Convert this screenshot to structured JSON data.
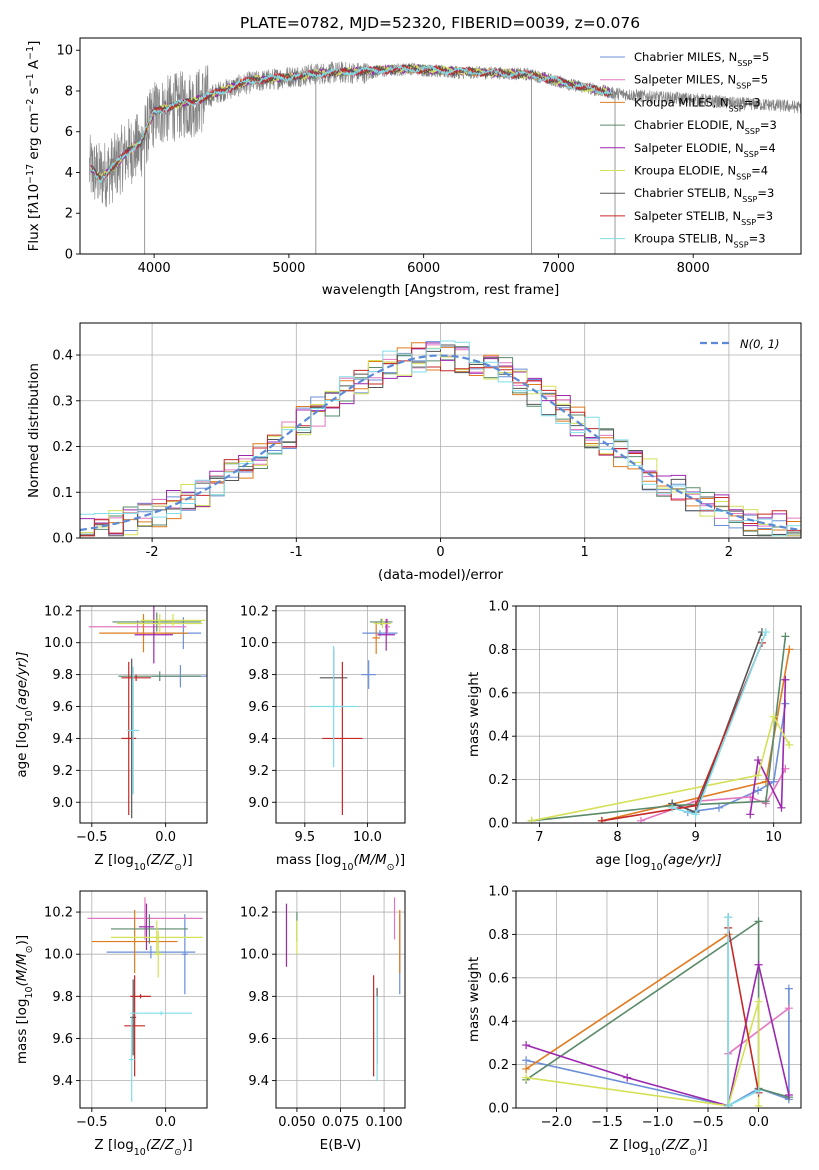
{
  "figure": {
    "title": "PLATE=0782, MJD=52320, FIBERID=0039, z=0.076"
  },
  "models": [
    {
      "name": "Chabrier MILES, N_SSP=5",
      "imf": "Chabrier",
      "lib": "MILES",
      "nssp": "5",
      "color": "#6b8fd8"
    },
    {
      "name": "Salpeter MILES, N_SSP=5",
      "imf": "Salpeter",
      "lib": "MILES",
      "nssp": "5",
      "color": "#e377c2"
    },
    {
      "name": "Kroupa MILES, N_SSP=3",
      "imf": "Kroupa",
      "lib": "MILES",
      "nssp": "3",
      "color": "#e07b1f"
    },
    {
      "name": "Chabrier ELODIE, N_SSP=3",
      "imf": "Chabrier",
      "lib": "ELODIE",
      "nssp": "3",
      "color": "#5a8a6a"
    },
    {
      "name": "Salpeter ELODIE, N_SSP=4",
      "imf": "Salpeter",
      "lib": "ELODIE",
      "nssp": "4",
      "color": "#9c27b0"
    },
    {
      "name": "Kroupa ELODIE, N_SSP=4",
      "imf": "Kroupa",
      "lib": "ELODIE",
      "nssp": "4",
      "color": "#d4e157"
    },
    {
      "name": "Chabrier STELIB, N_SSP=3",
      "imf": "Chabrier",
      "lib": "STELIB",
      "nssp": "3",
      "color": "#555555"
    },
    {
      "name": "Salpeter STELIB, N_SSP=3",
      "imf": "Salpeter",
      "lib": "STELIB",
      "nssp": "3",
      "color": "#c62828"
    },
    {
      "name": "Kroupa STELIB, N_SSP=3",
      "imf": "Kroupa",
      "lib": "STELIB",
      "nssp": "3",
      "color": "#80deea"
    }
  ],
  "chart_data": [
    {
      "type": "line",
      "panel": "spectrum",
      "xlabel": "wavelength [Angstrom, rest frame]",
      "ylabel_parts": [
        "Flux [f",
        "λ",
        "10",
        "−17",
        " erg cm",
        "−2",
        " s",
        "−1",
        " A",
        "−1",
        "]"
      ],
      "xlim": [
        3450,
        8800
      ],
      "ylim": [
        0,
        10.6
      ],
      "xticks": [
        4000,
        5000,
        6000,
        7000,
        8000
      ],
      "yticks": [
        0,
        2,
        4,
        6,
        8,
        10
      ],
      "data_color": "#808080",
      "data_profile": {
        "x": [
          3520,
          3600,
          3700,
          3800,
          3900,
          4000,
          4100,
          4200,
          4300,
          4500,
          4700,
          5000,
          5300,
          5600,
          5900,
          6200,
          6500,
          6800,
          7100,
          7400,
          7700,
          8000,
          8300,
          8600,
          8800
        ],
        "y": [
          4.2,
          3.8,
          4.2,
          5.0,
          5.3,
          6.9,
          7.1,
          7.3,
          7.4,
          8.0,
          8.4,
          8.7,
          8.9,
          8.9,
          9.1,
          8.9,
          8.9,
          8.8,
          8.3,
          7.9,
          7.7,
          7.6,
          7.4,
          7.3,
          7.2
        ]
      },
      "data_dropouts": [
        3930,
        5200,
        6800,
        7420
      ],
      "model_profile": {
        "x": [
          3520,
          3600,
          3700,
          3800,
          3900,
          4000,
          4100,
          4200,
          4300,
          4500,
          4700,
          5000,
          5300,
          5600,
          5900,
          6200,
          6500,
          6800,
          7100,
          7400
        ],
        "y": [
          4.3,
          3.7,
          4.3,
          5.0,
          5.5,
          7.0,
          7.2,
          7.4,
          7.5,
          8.0,
          8.5,
          8.7,
          8.9,
          9.0,
          9.1,
          9.0,
          8.9,
          8.8,
          8.3,
          7.9
        ]
      }
    },
    {
      "type": "line",
      "panel": "residuals",
      "xlabel": "(data-model)/error",
      "ylabel": "Normed distribution",
      "legend": "N(0, 1)",
      "legend_position": "top-right",
      "xlim": [
        -2.5,
        2.5
      ],
      "ylim": [
        0,
        0.47
      ],
      "xticks": [
        -2,
        -1,
        0,
        1,
        2
      ],
      "yticks": [
        0.0,
        0.1,
        0.2,
        0.3,
        0.4
      ],
      "bin_width": 0.1
    },
    {
      "type": "scatter",
      "panel": "age_vs_Z",
      "xlabel_parts": [
        "Z [log",
        "10",
        "(Z/Z",
        "⊙",
        ")]"
      ],
      "ylabel_parts": [
        "age  [log",
        "10",
        "(age/yr)]"
      ],
      "xlim": [
        -0.58,
        0.28
      ],
      "ylim": [
        8.87,
        10.23
      ],
      "xticks": [
        -0.5,
        0.0
      ],
      "xticklabels": [
        "−0.5",
        "0.0"
      ],
      "yticks": [
        9.0,
        9.2,
        9.4,
        9.6,
        9.8,
        10.0,
        10.2
      ],
      "points": [
        {
          "model": 0,
          "x": 0.1,
          "xerr": 0.19,
          "y": 9.79,
          "yerr": 0.07
        },
        {
          "model": 0,
          "x": 0.12,
          "xerr": 0.12,
          "y": 10.06,
          "yerr": 0.1
        },
        {
          "model": 1,
          "x": -0.19,
          "xerr": 0.33,
          "y": 10.1,
          "yerr": 0.04
        },
        {
          "model": 2,
          "x": -0.15,
          "xerr": 0.3,
          "y": 10.06,
          "yerr": 0.12
        },
        {
          "model": 3,
          "x": -0.06,
          "xerr": 0.3,
          "y": 10.13,
          "yerr": 0.06
        },
        {
          "model": 3,
          "x": -0.04,
          "xerr": 0.28,
          "y": 9.79,
          "yerr": 0.03
        },
        {
          "model": 4,
          "x": -0.08,
          "xerr": 0.13,
          "y": 10.05,
          "yerr": 0.18
        },
        {
          "model": 5,
          "x": -0.04,
          "xerr": 0.29,
          "y": 10.12,
          "yerr": 0.06
        },
        {
          "model": 5,
          "x": 0.05,
          "xerr": 0.22,
          "y": 10.14,
          "yerr": 0.04
        },
        {
          "model": 6,
          "x": -0.23,
          "xerr": 0.03,
          "y": 9.4,
          "yerr": 0.5
        },
        {
          "model": 7,
          "x": -0.25,
          "xerr": 0.05,
          "y": 9.4,
          "yerr": 0.48
        },
        {
          "model": 7,
          "x": -0.2,
          "xerr": 0.1,
          "y": 9.78,
          "yerr": 0.02
        },
        {
          "model": 8,
          "x": -0.22,
          "xerr": 0.04,
          "y": 9.45,
          "yerr": 0.4
        }
      ]
    },
    {
      "type": "scatter",
      "panel": "age_vs_mass",
      "xlabel_parts": [
        "mass [log",
        "10",
        "(M/M",
        "⊙",
        ")]"
      ],
      "xlim": [
        9.27,
        10.3
      ],
      "ylim": [
        8.87,
        10.23
      ],
      "xticks": [
        9.5,
        10.0
      ],
      "xticklabels": [
        "9.5",
        "10.0"
      ],
      "yticks": [
        9.0,
        9.2,
        9.4,
        9.6,
        9.8,
        10.0,
        10.2
      ],
      "points": [
        {
          "model": 0,
          "x": 10.01,
          "xerr": 0.06,
          "y": 9.8,
          "yerr": 0.09
        },
        {
          "model": 0,
          "x": 10.1,
          "xerr": 0.14,
          "y": 10.06,
          "yerr": 0.02
        },
        {
          "model": 1,
          "x": 10.16,
          "xerr": 0.02,
          "y": 10.1,
          "yerr": 0.05
        },
        {
          "model": 2,
          "x": 10.07,
          "xerr": 0.03,
          "y": 10.03,
          "yerr": 0.1
        },
        {
          "model": 3,
          "x": 10.11,
          "xerr": 0.09,
          "y": 10.13,
          "yerr": 0.02
        },
        {
          "model": 4,
          "x": 10.15,
          "xerr": 0.07,
          "y": 10.05,
          "yerr": 0.1
        },
        {
          "model": 5,
          "x": 10.12,
          "xerr": 0.07,
          "y": 10.12,
          "yerr": 0.03
        },
        {
          "model": 6,
          "x": 9.73,
          "xerr": 0.11,
          "y": 9.78,
          "yerr": 0.18
        },
        {
          "model": 7,
          "x": 9.8,
          "xerr": 0.16,
          "y": 9.4,
          "yerr": 0.48
        },
        {
          "model": 8,
          "x": 9.73,
          "xerr": 0.19,
          "y": 9.6,
          "yerr": 0.38
        }
      ]
    },
    {
      "type": "line",
      "panel": "weight_vs_age",
      "xlabel_parts": [
        "age  [log",
        "10",
        "(age/yr)]"
      ],
      "ylabel": "mass weight",
      "xlim": [
        6.7,
        10.35
      ],
      "ylim": [
        0,
        1.0
      ],
      "xticks": [
        7,
        8,
        9,
        10
      ],
      "yticks": [
        0.0,
        0.2,
        0.4,
        0.6,
        0.8,
        1.0
      ],
      "series": [
        {
          "model": 0,
          "x": [
            8.9,
            9.3,
            9.8,
            10.0,
            10.15
          ],
          "y": [
            0.05,
            0.07,
            0.15,
            0.19,
            0.55
          ]
        },
        {
          "model": 1,
          "x": [
            8.3,
            9.0,
            9.7,
            9.9,
            10.15
          ],
          "y": [
            0.01,
            0.1,
            0.12,
            0.09,
            0.25
          ]
        },
        {
          "model": 2,
          "x": [
            7.8,
            9.9,
            10.2
          ],
          "y": [
            0.01,
            0.19,
            0.8
          ]
        },
        {
          "model": 3,
          "x": [
            6.9,
            8.7,
            9.9,
            10.15
          ],
          "y": [
            0.01,
            0.08,
            0.1,
            0.86
          ]
        },
        {
          "model": 4,
          "x": [
            9.7,
            9.8,
            10.1,
            10.15
          ],
          "y": [
            0.04,
            0.29,
            0.07,
            0.66
          ]
        },
        {
          "model": 5,
          "x": [
            6.9,
            9.8,
            10.0,
            10.2
          ],
          "y": [
            0.01,
            0.22,
            0.49,
            0.36
          ]
        },
        {
          "model": 6,
          "x": [
            8.7,
            9.0,
            9.85
          ],
          "y": [
            0.09,
            0.05,
            0.88
          ]
        },
        {
          "model": 7,
          "x": [
            7.8,
            9.0,
            9.85
          ],
          "y": [
            0.01,
            0.08,
            0.83
          ]
        },
        {
          "model": 8,
          "x": [
            8.7,
            9.0,
            9.9
          ],
          "y": [
            0.07,
            0.04,
            0.88
          ]
        }
      ]
    },
    {
      "type": "scatter",
      "panel": "mass_vs_Z",
      "xlabel_parts": [
        "Z [log",
        "10",
        "(Z/Z",
        "⊙",
        ")]"
      ],
      "ylabel_parts": [
        "mass [log",
        "10",
        "(M/M",
        "⊙",
        ")]"
      ],
      "xlim": [
        -0.58,
        0.28
      ],
      "ylim": [
        9.27,
        10.3
      ],
      "xticks": [
        -0.5,
        0.0
      ],
      "xticklabels": [
        "−0.5",
        "0.0"
      ],
      "yticks": [
        9.4,
        9.6,
        9.8,
        10.0,
        10.2
      ],
      "points": [
        {
          "model": 0,
          "x": -0.1,
          "xerr": 0.3,
          "y": 10.01,
          "yerr": 0.03
        },
        {
          "model": 0,
          "x": 0.13,
          "xerr": 0.02,
          "y": 10.0,
          "yerr": 0.19
        },
        {
          "model": 1,
          "x": -0.14,
          "xerr": 0.39,
          "y": 10.17,
          "yerr": 0.1
        },
        {
          "model": 2,
          "x": -0.21,
          "xerr": 0.29,
          "y": 10.06,
          "yerr": 0.15
        },
        {
          "model": 3,
          "x": -0.11,
          "xerr": 0.26,
          "y": 10.12,
          "yerr": 0.07
        },
        {
          "model": 4,
          "x": -0.13,
          "xerr": 0.05,
          "y": 10.13,
          "yerr": 0.11
        },
        {
          "model": 5,
          "x": -0.06,
          "xerr": 0.31,
          "y": 10.08,
          "yerr": 0.08
        },
        {
          "model": 5,
          "x": -0.05,
          "xerr": 0.03,
          "y": 10.0,
          "yerr": 0.11
        },
        {
          "model": 6,
          "x": -0.22,
          "xerr": 0.02,
          "y": 9.7,
          "yerr": 0.18
        },
        {
          "model": 7,
          "x": -0.21,
          "xerr": 0.07,
          "y": 9.66,
          "yerr": 0.24
        },
        {
          "model": 7,
          "x": -0.17,
          "xerr": 0.07,
          "y": 9.8,
          "yerr": 0.01
        },
        {
          "model": 8,
          "x": -0.03,
          "xerr": 0.21,
          "y": 9.72,
          "yerr": 0.01
        },
        {
          "model": 8,
          "x": -0.23,
          "xerr": 0.02,
          "y": 9.5,
          "yerr": 0.2
        }
      ]
    },
    {
      "type": "scatter",
      "panel": "mass_vs_ebv",
      "xlabel": "E(B-V)",
      "xlim": [
        0.038,
        0.112
      ],
      "ylim": [
        9.27,
        10.3
      ],
      "xticks": [
        0.05,
        0.075,
        0.1
      ],
      "xticklabels": [
        "0.050",
        "0.075",
        "0.100"
      ],
      "yticks": [
        9.4,
        9.6,
        9.8,
        10.0,
        10.2
      ],
      "points": [
        {
          "model": 0,
          "x": 0.109,
          "yerr": 0.19,
          "y": 10.0
        },
        {
          "model": 1,
          "x": 0.106,
          "yerr": 0.1,
          "y": 10.17
        },
        {
          "model": 2,
          "x": 0.109,
          "yerr": 0.15,
          "y": 10.06
        },
        {
          "model": 3,
          "x": 0.05,
          "yerr": 0.07,
          "y": 10.13
        },
        {
          "model": 4,
          "x": 0.044,
          "yerr": 0.15,
          "y": 10.09
        },
        {
          "model": 5,
          "x": 0.05,
          "yerr": 0.08,
          "y": 10.08
        },
        {
          "model": 6,
          "x": 0.096,
          "yerr": 0.18,
          "y": 9.66
        },
        {
          "model": 7,
          "x": 0.094,
          "yerr": 0.24,
          "y": 9.66
        },
        {
          "model": 8,
          "x": 0.096,
          "yerr": 0.2,
          "y": 9.6
        }
      ]
    },
    {
      "type": "line",
      "panel": "weight_vs_Z",
      "xlabel_parts": [
        "Z [log",
        "10",
        "(Z/Z",
        "⊙",
        ")]"
      ],
      "ylabel": "mass weight",
      "xlim": [
        -2.4,
        0.42
      ],
      "ylim": [
        0,
        1.0
      ],
      "xticks": [
        -2.0,
        -1.5,
        -1.0,
        -0.5,
        0.0
      ],
      "xticklabels": [
        "−2.0",
        "−1.5",
        "−1.0",
        "−0.5",
        "0.0"
      ],
      "yticks": [
        0.0,
        0.2,
        0.4,
        0.6,
        0.8,
        1.0
      ],
      "series": [
        {
          "model": 0,
          "x": [
            -2.3,
            -0.3,
            0.0,
            0.3,
            0.3
          ],
          "y": [
            0.22,
            0.01,
            0.09,
            0.04,
            0.55
          ]
        },
        {
          "model": 1,
          "x": [
            -0.3,
            0.3
          ],
          "y": [
            0.25,
            0.46
          ]
        },
        {
          "model": 2,
          "x": [
            -2.3,
            -0.3,
            -0.3
          ],
          "y": [
            0.18,
            0.8,
            0.01
          ]
        },
        {
          "model": 3,
          "x": [
            -2.3,
            0.0,
            0.0,
            0.3
          ],
          "y": [
            0.13,
            0.86,
            0.09,
            0.05
          ]
        },
        {
          "model": 4,
          "x": [
            -2.3,
            -1.3,
            -0.3,
            0.0,
            0.3
          ],
          "y": [
            0.29,
            0.14,
            0.01,
            0.66,
            0.06
          ]
        },
        {
          "model": 5,
          "x": [
            -2.3,
            -0.3,
            0.0,
            0.0
          ],
          "y": [
            0.14,
            0.01,
            0.49,
            0.01
          ]
        },
        {
          "model": 6,
          "x": [
            -0.3,
            -0.3
          ],
          "y": [
            0.88,
            0.01
          ]
        },
        {
          "model": 7,
          "x": [
            -0.3,
            0.0
          ],
          "y": [
            0.83,
            0.07
          ]
        },
        {
          "model": 8,
          "x": [
            -0.3,
            -0.3,
            0.0
          ],
          "y": [
            0.88,
            0.01,
            0.08
          ]
        }
      ]
    }
  ]
}
